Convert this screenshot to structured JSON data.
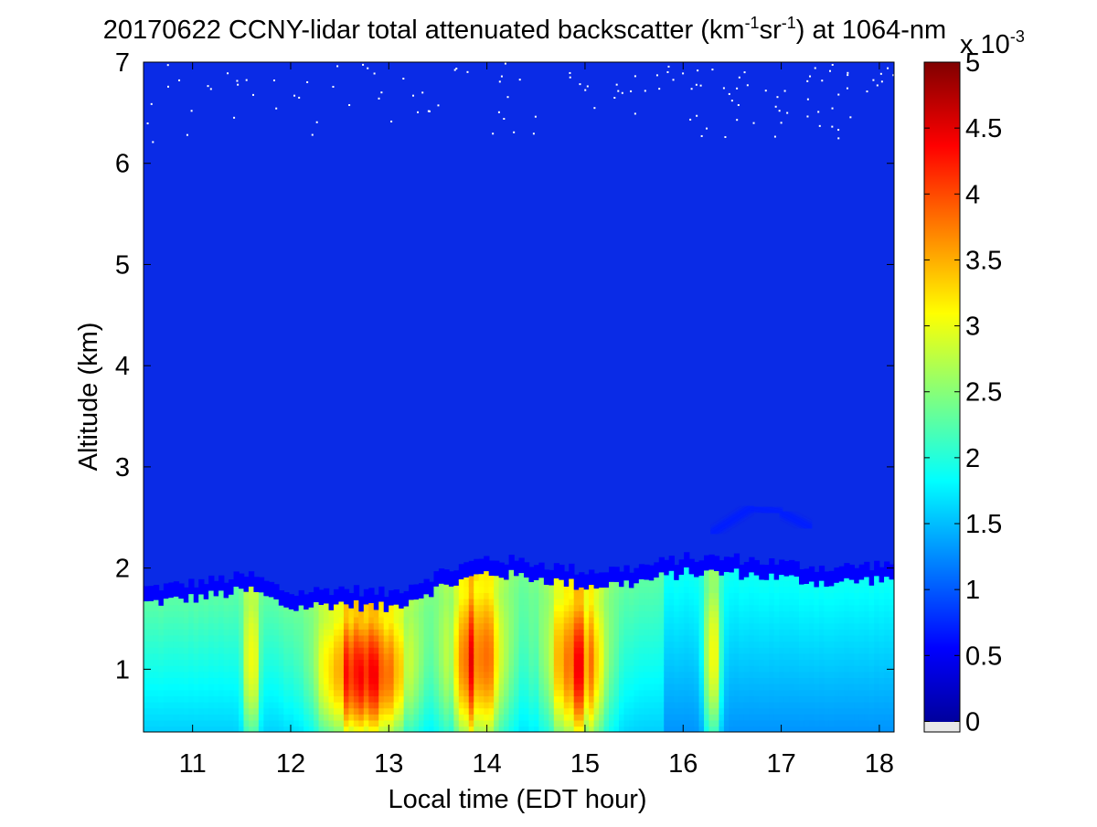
{
  "chart_data": {
    "type": "heatmap",
    "title": {
      "prefix": "20170622 CCNY-lidar total attenuated backscatter (km",
      "sup1": "-1",
      "mid": "sr",
      "sup2": "-1",
      "suffix": ") at 1064-nm"
    },
    "xlabel": "Local time (EDT hour)",
    "ylabel": "Altitude (km)",
    "xlim": [
      10.5,
      18.15
    ],
    "ylim": [
      0.38,
      7.0
    ],
    "xticks": [
      11,
      12,
      13,
      14,
      15,
      16,
      17,
      18
    ],
    "yticks": [
      1,
      2,
      3,
      4,
      5,
      6,
      7
    ],
    "colorbar": {
      "range": [
        -0.08,
        5.0
      ],
      "ticks": [
        0,
        0.5,
        1,
        1.5,
        2,
        2.5,
        3,
        3.5,
        4,
        4.5,
        5
      ],
      "tick_labels": [
        "0",
        "0.5",
        "1",
        "1.5",
        "2",
        "2.5",
        "3",
        "3.5",
        "4",
        "4.5",
        "5"
      ],
      "multiplier_base": "x 10",
      "multiplier_exp": "-3",
      "colormap": "jet"
    },
    "features": {
      "boundary_layer_top_km": [
        [
          10.5,
          1.65
        ],
        [
          11.0,
          1.7
        ],
        [
          11.6,
          1.78
        ],
        [
          12.0,
          1.6
        ],
        [
          12.5,
          1.65
        ],
        [
          13.0,
          1.6
        ],
        [
          13.5,
          1.8
        ],
        [
          14.0,
          1.95
        ],
        [
          14.5,
          1.9
        ],
        [
          15.0,
          1.82
        ],
        [
          15.5,
          1.85
        ],
        [
          16.0,
          1.95
        ],
        [
          16.5,
          1.95
        ],
        [
          17.0,
          1.9
        ],
        [
          17.5,
          1.85
        ],
        [
          18.15,
          1.9
        ]
      ],
      "residual_layer_km": [
        [
          16.3,
          2.35
        ],
        [
          16.7,
          2.6
        ],
        [
          17.0,
          2.55
        ],
        [
          17.3,
          2.4
        ]
      ],
      "background_value": 0.2,
      "mixed_layer_peak_value": 4.7
    }
  }
}
